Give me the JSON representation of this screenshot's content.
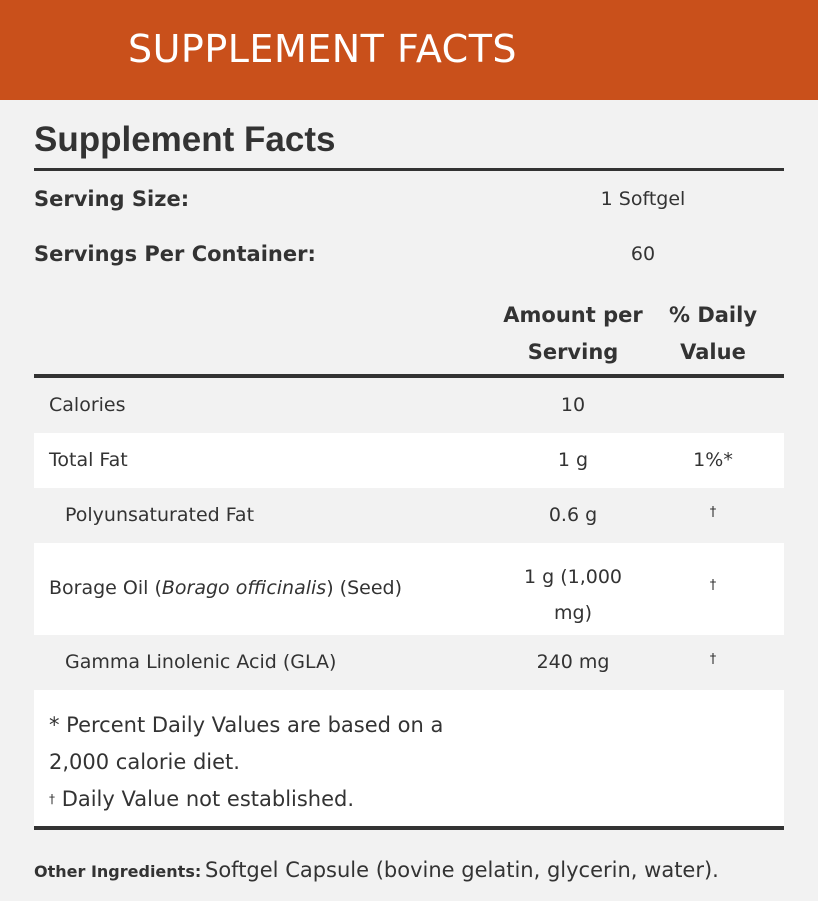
{
  "header": {
    "title": "SUPPLEMENT FACTS"
  },
  "panel": {
    "title": "Supplement Facts",
    "serving_size": {
      "label": "Serving Size:",
      "value": "1 Softgel"
    },
    "servings_per_container": {
      "label": "Servings Per Container:",
      "value": "60"
    },
    "columns": {
      "amount": [
        "Amount per",
        "Serving"
      ],
      "daily_value": [
        "% Daily",
        "Value"
      ]
    },
    "rows": [
      {
        "name": "Calories",
        "amount": "10",
        "dv": null
      },
      {
        "name": "Total Fat",
        "amount": "1 g",
        "dv": "1%*"
      },
      {
        "name": "Polyunsaturated Fat",
        "amount": "0.6 g",
        "dv": "†"
      },
      {
        "name_parts": [
          "Borage Oil (",
          "Borago officinalis",
          ") (Seed)"
        ],
        "amount": [
          "1 g (1,000",
          "mg)"
        ],
        "dv": "†"
      },
      {
        "name": "Gamma Linolenic Acid (GLA)",
        "amount": "240 mg",
        "dv": "†"
      }
    ],
    "footnotes": {
      "percent": [
        "* Percent Daily Values are based on a",
        "2,000 calorie diet."
      ],
      "dagger_mark": "†",
      "dagger_text": "Daily Value not established."
    }
  },
  "other_ingredients": {
    "label": "Other Ingredients:",
    "text": "Softgel Capsule (bovine gelatin, glycerin, water)."
  }
}
